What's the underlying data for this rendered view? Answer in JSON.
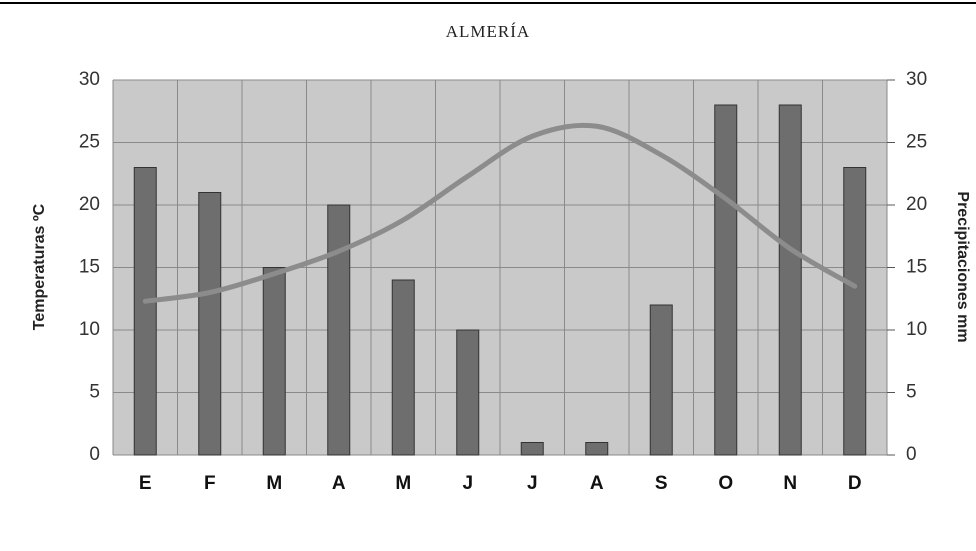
{
  "chart_data": {
    "type": "combo",
    "title": "ALMERÍA",
    "y_label": "Temperaturas ºC",
    "y2_label": "Precipitaciones mm",
    "categories": [
      "E",
      "F",
      "M",
      "A",
      "M",
      "J",
      "J",
      "A",
      "S",
      "O",
      "N",
      "D"
    ],
    "series": [
      {
        "name": "Precipitaciones",
        "type": "bar",
        "axis": "y2",
        "color": "#6e6e6e",
        "values": [
          23,
          21,
          15,
          20,
          14,
          10,
          1,
          1,
          12,
          28,
          28,
          23
        ]
      },
      {
        "name": "Temperaturas",
        "type": "line",
        "color": "#8c8c8c",
        "values": [
          12.3,
          13,
          14.5,
          16.3,
          18.8,
          22.3,
          25.5,
          26.3,
          24,
          20.5,
          16.5,
          13.5
        ]
      }
    ],
    "ylim": [
      0,
      30
    ],
    "yticks": [
      0,
      5,
      10,
      15,
      20,
      25,
      30
    ],
    "y2lim": [
      0,
      30
    ],
    "y2ticks": [
      0,
      5,
      10,
      15,
      20,
      25,
      30
    ],
    "grid": true
  }
}
